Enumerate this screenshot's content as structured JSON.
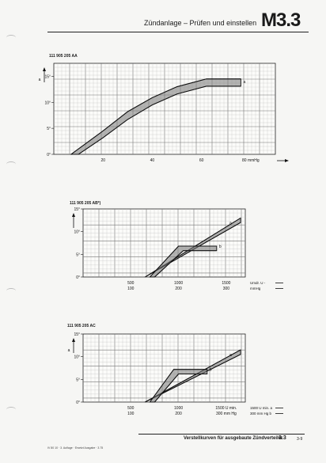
{
  "header": {
    "title": "Zündanlage – Prüfen und einstellen",
    "code": "M3.3"
  },
  "footer": {
    "title": "Verstellkurven für ausgebaute Zündverteiler",
    "number": "3.3",
    "sub": "3-9",
    "small": "IV 80 10 · 3. Auflage · Ersetzt Ausgabe · 3.75"
  },
  "chart_data": [
    {
      "type": "area",
      "label": "111 905 205 AA",
      "ylabel": "a",
      "xlabel": "mm Hg",
      "y_ticks": [
        "15°",
        "10°",
        "5°",
        "0°"
      ],
      "y_tick_values": [
        15,
        10,
        5,
        0
      ],
      "x_tick_labels": [
        "20",
        "40",
        "60",
        "80 mmHg"
      ],
      "x_tick_values": [
        20,
        40,
        60,
        80
      ],
      "xlim": [
        0,
        90
      ],
      "ylim": [
        0,
        17.5
      ],
      "band_label": "a",
      "series": [
        {
          "values_x": [
            7,
            20,
            30,
            40,
            50,
            62,
            76
          ],
          "values_y": [
            0,
            4.5,
            8.2,
            10.9,
            13,
            14.5,
            14.5
          ]
        },
        {
          "values_x": [
            10,
            20,
            30,
            40,
            50,
            62,
            76
          ],
          "values_y": [
            0,
            3.2,
            6.7,
            9.5,
            11.6,
            13.1,
            13.1
          ]
        }
      ]
    },
    {
      "type": "area",
      "label": "111 905 205 AB*)",
      "ylabel": "",
      "xlabel_rows": [
        "Umdr. U -",
        "mmHg"
      ],
      "y_ticks": [
        "15°",
        "10°",
        "5°",
        "0°"
      ],
      "y_tick_values": [
        15,
        10,
        5,
        0
      ],
      "x_tick_labels_top": [
        "500",
        "1000",
        "1500"
      ],
      "x_tick_labels_bottom": [
        "100",
        "200",
        "300"
      ],
      "x_tick_values": [
        500,
        1000,
        1500
      ],
      "xlim": [
        0,
        1700
      ],
      "ylim": [
        0,
        15
      ],
      "band_labels": [
        "b",
        "a"
      ],
      "series": [
        {
          "name": "a",
          "values_x": [
            650,
            1650
          ],
          "values_y": [
            0,
            13
          ]
        },
        {
          "name": "a",
          "values_x": [
            650,
            1650
          ],
          "values_y": [
            0,
            12
          ]
        },
        {
          "name": "b",
          "values_x": [
            700,
            1000,
            1400
          ],
          "values_y": [
            0,
            6.8,
            6.8
          ]
        },
        {
          "name": "b",
          "values_x": [
            750,
            1050,
            1400
          ],
          "values_y": [
            0,
            5.8,
            5.8
          ]
        }
      ]
    },
    {
      "type": "area",
      "label": "111 905 205 AC",
      "ylabel": "a",
      "xlabel_rows": [
        "1500 U min.  a",
        "300 mm Hg  b"
      ],
      "y_ticks": [
        "15°",
        "10°",
        "5°",
        "0°"
      ],
      "y_tick_values": [
        15,
        10,
        5,
        0
      ],
      "x_tick_labels_top": [
        "500",
        "1000",
        "1500 U min."
      ],
      "x_tick_labels_bottom": [
        "100",
        "200",
        "300 mm Hg"
      ],
      "x_tick_values": [
        500,
        1000,
        1500
      ],
      "xlim": [
        0,
        1700
      ],
      "ylim": [
        0,
        15
      ],
      "band_labels": [
        "b",
        "a"
      ],
      "series": [
        {
          "name": "a",
          "values_x": [
            650,
            1650
          ],
          "values_y": [
            0,
            11.5
          ]
        },
        {
          "name": "a",
          "values_x": [
            650,
            1650
          ],
          "values_y": [
            0,
            10.5
          ]
        },
        {
          "name": "b",
          "values_x": [
            700,
            950,
            1300
          ],
          "values_y": [
            0,
            7.2,
            7.2
          ]
        },
        {
          "name": "b",
          "values_x": [
            750,
            1000,
            1300
          ],
          "values_y": [
            0,
            6.2,
            6.2
          ]
        }
      ]
    }
  ]
}
